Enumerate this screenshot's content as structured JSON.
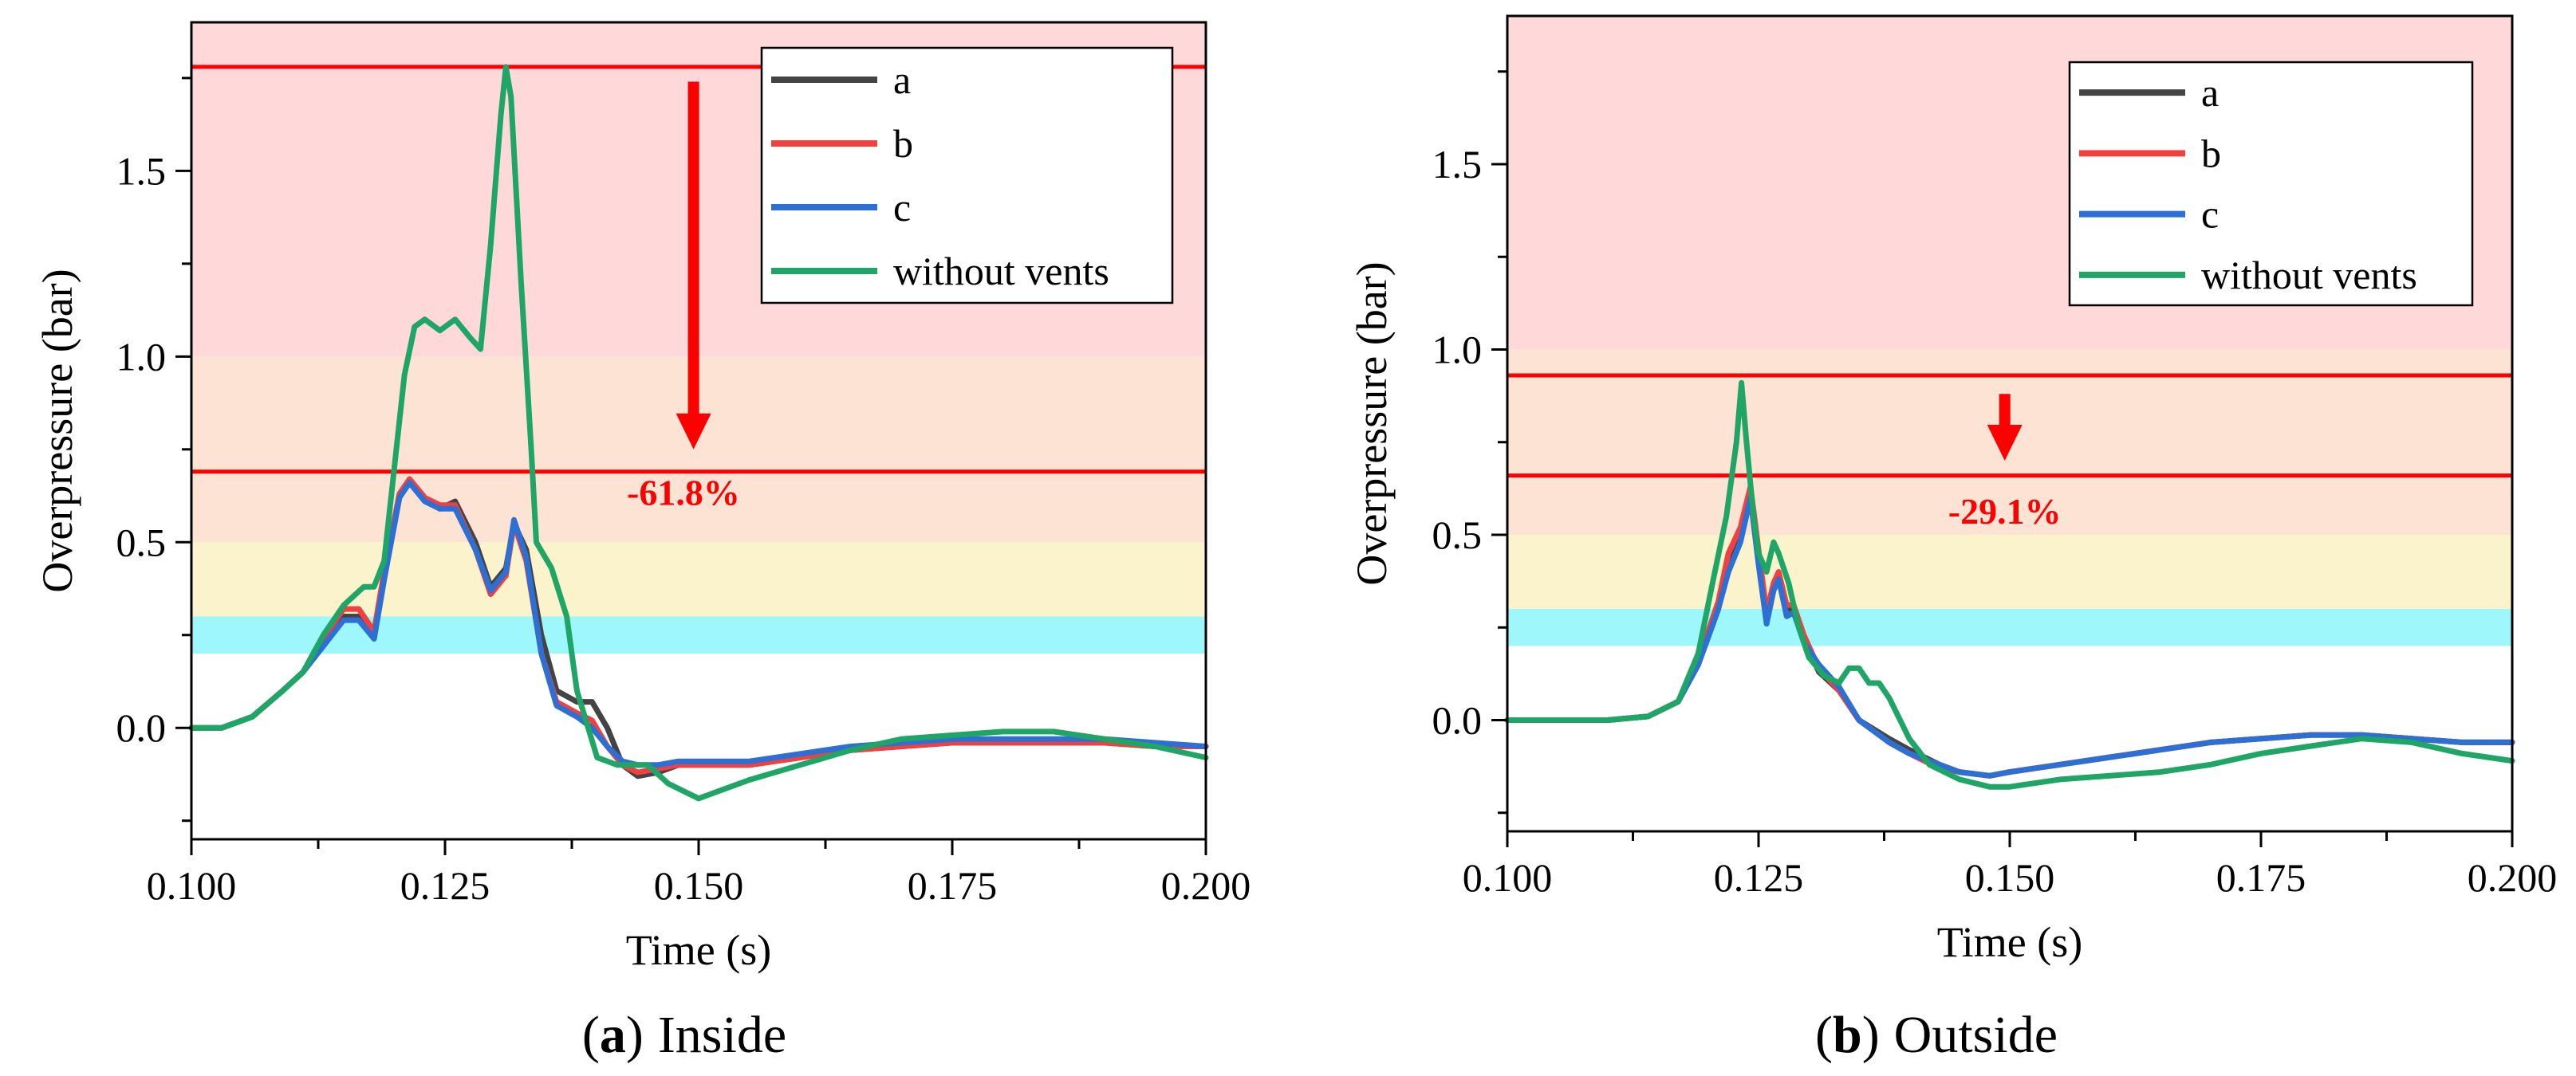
{
  "chart_data": [
    {
      "type": "line",
      "caption_letter": "a",
      "caption_text": "Inside",
      "caption_open": "(",
      "caption_close": ")",
      "xlabel": "Time (s)",
      "ylabel": "Overpressure (bar)",
      "xlim": [
        0.1,
        0.2
      ],
      "ylim": [
        -0.3,
        1.9
      ],
      "xticks": [
        0.1,
        0.125,
        0.15,
        0.175,
        0.2
      ],
      "xtick_labels": [
        "0.100",
        "0.125",
        "0.150",
        "0.175",
        "0.200"
      ],
      "yticks": [
        0.0,
        0.5,
        1.0,
        1.5
      ],
      "ytick_labels": [
        "0.0",
        "0.5",
        "1.0",
        "1.5"
      ],
      "bands": [
        {
          "from": 1.0,
          "to": 1.9,
          "color": "#ffd9d9"
        },
        {
          "from": 0.5,
          "to": 1.0,
          "color": "#fde3d4"
        },
        {
          "from": 0.3,
          "to": 0.5,
          "color": "#fbf3cc"
        },
        {
          "from": 0.2,
          "to": 0.3,
          "color": "#9ef7fa"
        }
      ],
      "reference_lines": [
        1.78,
        0.69
      ],
      "arrow": {
        "x": 0.1495,
        "from": 1.74,
        "to": 0.75
      },
      "annotation": {
        "text": "-61.8%",
        "x": 0.1485,
        "y": 0.6
      },
      "legend": [
        "a",
        "b",
        "c",
        "without vents"
      ],
      "series": [
        {
          "name": "a",
          "color": "#444444",
          "x": [
            0.1,
            0.103,
            0.106,
            0.109,
            0.111,
            0.113,
            0.115,
            0.1165,
            0.118,
            0.119,
            0.1205,
            0.1215,
            0.123,
            0.1245,
            0.126,
            0.128,
            0.1295,
            0.131,
            0.1318,
            0.133,
            0.1345,
            0.136,
            0.138,
            0.1395,
            0.141,
            0.1425,
            0.144,
            0.146,
            0.148,
            0.15,
            0.155,
            0.16,
            0.165,
            0.17,
            0.175,
            0.18,
            0.185,
            0.19,
            0.195,
            0.2
          ],
          "y": [
            0,
            0,
            0.03,
            0.1,
            0.15,
            0.23,
            0.3,
            0.3,
            0.24,
            0.4,
            0.62,
            0.67,
            0.62,
            0.59,
            0.61,
            0.5,
            0.38,
            0.43,
            0.55,
            0.48,
            0.25,
            0.1,
            0.07,
            0.07,
            0.0,
            -0.1,
            -0.13,
            -0.12,
            -0.1,
            -0.1,
            -0.1,
            -0.08,
            -0.06,
            -0.05,
            -0.04,
            -0.04,
            -0.04,
            -0.04,
            -0.05,
            -0.05
          ]
        },
        {
          "name": "b",
          "color": "#f04040",
          "x": [
            0.1,
            0.103,
            0.106,
            0.109,
            0.111,
            0.113,
            0.115,
            0.1165,
            0.118,
            0.119,
            0.1205,
            0.1215,
            0.123,
            0.1245,
            0.126,
            0.128,
            0.1295,
            0.131,
            0.1318,
            0.133,
            0.1345,
            0.136,
            0.138,
            0.1395,
            0.141,
            0.1425,
            0.144,
            0.146,
            0.148,
            0.15,
            0.155,
            0.16,
            0.165,
            0.17,
            0.175,
            0.18,
            0.185,
            0.19,
            0.195,
            0.2
          ],
          "y": [
            0,
            0,
            0.03,
            0.1,
            0.15,
            0.24,
            0.32,
            0.32,
            0.26,
            0.42,
            0.63,
            0.67,
            0.62,
            0.6,
            0.6,
            0.48,
            0.36,
            0.41,
            0.55,
            0.45,
            0.2,
            0.07,
            0.04,
            0.02,
            -0.05,
            -0.1,
            -0.12,
            -0.11,
            -0.1,
            -0.1,
            -0.1,
            -0.08,
            -0.06,
            -0.05,
            -0.04,
            -0.04,
            -0.04,
            -0.04,
            -0.05,
            -0.05
          ]
        },
        {
          "name": "c",
          "color": "#2d6fd2",
          "x": [
            0.1,
            0.103,
            0.106,
            0.109,
            0.111,
            0.113,
            0.115,
            0.1165,
            0.118,
            0.119,
            0.1205,
            0.1215,
            0.123,
            0.1245,
            0.126,
            0.128,
            0.1295,
            0.131,
            0.1318,
            0.133,
            0.1345,
            0.136,
            0.138,
            0.1395,
            0.141,
            0.1425,
            0.144,
            0.146,
            0.148,
            0.15,
            0.155,
            0.16,
            0.165,
            0.17,
            0.175,
            0.18,
            0.185,
            0.19,
            0.195,
            0.2
          ],
          "y": [
            0,
            0,
            0.03,
            0.1,
            0.15,
            0.22,
            0.29,
            0.29,
            0.24,
            0.4,
            0.62,
            0.66,
            0.61,
            0.59,
            0.59,
            0.48,
            0.37,
            0.42,
            0.56,
            0.46,
            0.2,
            0.06,
            0.03,
            0.0,
            -0.05,
            -0.09,
            -0.1,
            -0.1,
            -0.09,
            -0.09,
            -0.09,
            -0.07,
            -0.05,
            -0.04,
            -0.03,
            -0.03,
            -0.03,
            -0.03,
            -0.04,
            -0.05
          ]
        },
        {
          "name": "without vents",
          "color": "#1fa566",
          "x": [
            0.1,
            0.103,
            0.106,
            0.109,
            0.111,
            0.113,
            0.115,
            0.117,
            0.118,
            0.119,
            0.12,
            0.121,
            0.122,
            0.123,
            0.1245,
            0.126,
            0.1275,
            0.1285,
            0.1295,
            0.1305,
            0.131,
            0.1315,
            0.1325,
            0.1335,
            0.134,
            0.1355,
            0.137,
            0.138,
            0.14,
            0.142,
            0.145,
            0.147,
            0.15,
            0.155,
            0.16,
            0.165,
            0.17,
            0.175,
            0.18,
            0.185,
            0.19,
            0.195,
            0.2
          ],
          "y": [
            0,
            0,
            0.03,
            0.1,
            0.15,
            0.25,
            0.33,
            0.38,
            0.38,
            0.45,
            0.7,
            0.95,
            1.08,
            1.1,
            1.07,
            1.1,
            1.05,
            1.02,
            1.3,
            1.65,
            1.78,
            1.7,
            1.2,
            0.75,
            0.5,
            0.43,
            0.3,
            0.1,
            -0.08,
            -0.1,
            -0.1,
            -0.15,
            -0.19,
            -0.14,
            -0.1,
            -0.06,
            -0.03,
            -0.02,
            -0.01,
            -0.01,
            -0.03,
            -0.05,
            -0.08
          ]
        }
      ]
    },
    {
      "type": "line",
      "caption_letter": "b",
      "caption_text": "Outside",
      "caption_open": "(",
      "caption_close": ")",
      "xlabel": "Time (s)",
      "ylabel": "Overpressure (bar)",
      "xlim": [
        0.1,
        0.2
      ],
      "ylim": [
        -0.3,
        1.9
      ],
      "xticks": [
        0.1,
        0.125,
        0.15,
        0.175,
        0.2
      ],
      "xtick_labels": [
        "0.100",
        "0.125",
        "0.150",
        "0.175",
        "0.200"
      ],
      "yticks": [
        0.0,
        0.5,
        1.0,
        1.5
      ],
      "ytick_labels": [
        "0.0",
        "0.5",
        "1.0",
        "1.5"
      ],
      "bands": [
        {
          "from": 1.0,
          "to": 1.9,
          "color": "#ffd9d9"
        },
        {
          "from": 0.5,
          "to": 1.0,
          "color": "#fde3d4"
        },
        {
          "from": 0.3,
          "to": 0.5,
          "color": "#fbf3cc"
        },
        {
          "from": 0.2,
          "to": 0.3,
          "color": "#9ef7fa"
        }
      ],
      "reference_lines": [
        0.93,
        0.66
      ],
      "arrow": {
        "x": 0.1495,
        "from": 0.88,
        "to": 0.7
      },
      "annotation": {
        "text": "-29.1%",
        "x": 0.1495,
        "y": 0.53
      },
      "legend": [
        "a",
        "b",
        "c",
        "without vents"
      ],
      "series": [
        {
          "name": "a",
          "color": "#444444",
          "x": [
            0.1,
            0.105,
            0.11,
            0.114,
            0.117,
            0.119,
            0.121,
            0.122,
            0.1232,
            0.1242,
            0.125,
            0.1258,
            0.1265,
            0.127,
            0.1278,
            0.1285,
            0.1295,
            0.131,
            0.133,
            0.135,
            0.138,
            0.14,
            0.143,
            0.145,
            0.148,
            0.15,
            0.155,
            0.16,
            0.165,
            0.17,
            0.175,
            0.18,
            0.185,
            0.19,
            0.195,
            0.2
          ],
          "y": [
            0,
            0,
            0,
            0.01,
            0.05,
            0.15,
            0.3,
            0.42,
            0.5,
            0.62,
            0.44,
            0.28,
            0.36,
            0.39,
            0.3,
            0.3,
            0.22,
            0.13,
            0.08,
            0.0,
            -0.05,
            -0.08,
            -0.12,
            -0.14,
            -0.15,
            -0.14,
            -0.12,
            -0.1,
            -0.08,
            -0.06,
            -0.05,
            -0.04,
            -0.04,
            -0.05,
            -0.06,
            -0.06
          ]
        },
        {
          "name": "b",
          "color": "#f04040",
          "x": [
            0.1,
            0.105,
            0.11,
            0.114,
            0.117,
            0.119,
            0.121,
            0.122,
            0.1232,
            0.1242,
            0.125,
            0.1258,
            0.1265,
            0.127,
            0.1278,
            0.1285,
            0.1295,
            0.131,
            0.133,
            0.135,
            0.138,
            0.14,
            0.143,
            0.145,
            0.148,
            0.15,
            0.155,
            0.16,
            0.165,
            0.17,
            0.175,
            0.18,
            0.185,
            0.19,
            0.195,
            0.2
          ],
          "y": [
            0,
            0,
            0,
            0.01,
            0.05,
            0.16,
            0.32,
            0.45,
            0.52,
            0.63,
            0.46,
            0.29,
            0.37,
            0.4,
            0.31,
            0.31,
            0.23,
            0.14,
            0.08,
            0.0,
            -0.06,
            -0.09,
            -0.13,
            -0.14,
            -0.15,
            -0.14,
            -0.12,
            -0.1,
            -0.08,
            -0.06,
            -0.05,
            -0.04,
            -0.04,
            -0.05,
            -0.06,
            -0.06
          ]
        },
        {
          "name": "c",
          "color": "#2d6fd2",
          "x": [
            0.1,
            0.105,
            0.11,
            0.114,
            0.117,
            0.119,
            0.121,
            0.122,
            0.1232,
            0.1242,
            0.125,
            0.1258,
            0.1265,
            0.127,
            0.1278,
            0.1285,
            0.1295,
            0.131,
            0.133,
            0.135,
            0.138,
            0.14,
            0.143,
            0.145,
            0.148,
            0.15,
            0.155,
            0.16,
            0.165,
            0.17,
            0.175,
            0.18,
            0.185,
            0.19,
            0.195,
            0.2
          ],
          "y": [
            0,
            0,
            0,
            0.01,
            0.05,
            0.15,
            0.3,
            0.4,
            0.48,
            0.6,
            0.42,
            0.26,
            0.35,
            0.38,
            0.28,
            0.29,
            0.21,
            0.15,
            0.09,
            0.0,
            -0.06,
            -0.09,
            -0.12,
            -0.14,
            -0.15,
            -0.14,
            -0.12,
            -0.1,
            -0.08,
            -0.06,
            -0.05,
            -0.04,
            -0.04,
            -0.05,
            -0.06,
            -0.06
          ]
        },
        {
          "name": "without vents",
          "color": "#1fa566",
          "x": [
            0.1,
            0.105,
            0.11,
            0.114,
            0.117,
            0.119,
            0.1205,
            0.1218,
            0.1228,
            0.1233,
            0.1238,
            0.1245,
            0.125,
            0.1258,
            0.1265,
            0.127,
            0.128,
            0.129,
            0.13,
            0.1315,
            0.133,
            0.134,
            0.135,
            0.136,
            0.137,
            0.138,
            0.14,
            0.142,
            0.145,
            0.148,
            0.15,
            0.155,
            0.16,
            0.165,
            0.17,
            0.175,
            0.18,
            0.185,
            0.19,
            0.195,
            0.2
          ],
          "y": [
            0,
            0,
            0,
            0.01,
            0.05,
            0.18,
            0.38,
            0.55,
            0.75,
            0.91,
            0.75,
            0.55,
            0.45,
            0.4,
            0.48,
            0.45,
            0.37,
            0.25,
            0.17,
            0.12,
            0.1,
            0.14,
            0.14,
            0.1,
            0.1,
            0.06,
            -0.05,
            -0.12,
            -0.16,
            -0.18,
            -0.18,
            -0.16,
            -0.15,
            -0.14,
            -0.12,
            -0.09,
            -0.07,
            -0.05,
            -0.06,
            -0.09,
            -0.11
          ]
        }
      ]
    }
  ]
}
